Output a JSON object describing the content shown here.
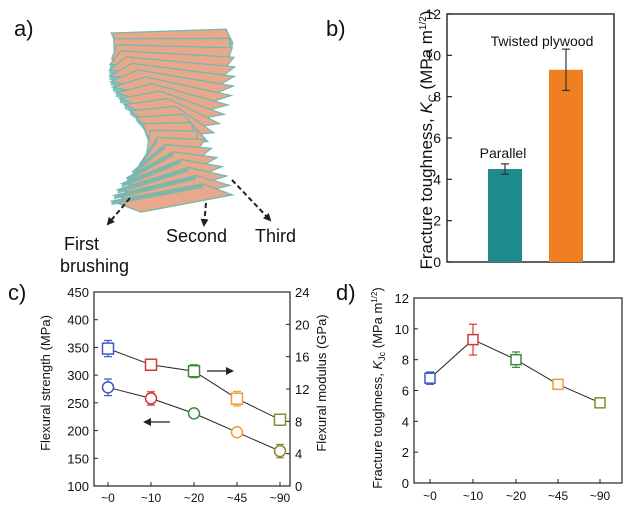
{
  "panels": {
    "a": {
      "label": "a)",
      "annotations": [
        "First",
        "brushing",
        "Second",
        "Third"
      ]
    },
    "b": {
      "label": "b)"
    },
    "c": {
      "label": "c)"
    },
    "d": {
      "label": "d)"
    }
  },
  "colors": {
    "teal": "#1e8a8c",
    "orange": "#f07f22",
    "blue": "#3b58c4",
    "red": "#d23a3a",
    "green": "#3c8a3c",
    "lightorange": "#f49a3a",
    "olive": "#8a8c2a",
    "fiber_pink": "#e8a88c",
    "fiber_teal": "#6fb8b0"
  },
  "chart_data": [
    {
      "id": "b",
      "type": "bar",
      "categories": [
        "Parallel",
        "Twisted plywood"
      ],
      "values": [
        4.5,
        9.3
      ],
      "errors": [
        0.25,
        1.0
      ],
      "bar_labels": [
        "Parallel",
        "Twisted plywood"
      ],
      "ylabel_main": "Fracture toughness, ",
      "ylabel_sym": "K",
      "ylabel_sub": "C",
      "ylabel_unit": " (MPa m",
      "ylabel_sup": "1/2",
      "ylabel_close": ")",
      "ylim": [
        0,
        12
      ],
      "yticks": [
        "0",
        "2",
        "4",
        "6",
        "8",
        "10",
        "12"
      ]
    },
    {
      "id": "c",
      "type": "line",
      "categories": [
        "~0",
        "~10",
        "~20",
        "~45",
        "~90"
      ],
      "series": [
        {
          "axis": "right",
          "values": [
            17.0,
            15.0,
            14.2,
            10.8,
            8.2
          ],
          "errors": [
            1.0,
            0.5,
            0.8,
            0.9,
            0.6
          ]
        },
        {
          "axis": "left",
          "values": [
            278,
            258,
            231,
            197,
            163
          ],
          "errors": [
            15,
            12,
            8,
            5,
            12
          ]
        }
      ],
      "point_colors": [
        "#3b58c4",
        "#d23a3a",
        "#3c8a3c",
        "#f49a3a",
        "#8a8c2a"
      ],
      "ylabel_left": "Flexural strength (MPa)",
      "ylabel_right": "Flexural modulus (GPa)",
      "ylim_left": [
        100,
        450
      ],
      "ylim_right": [
        0,
        24
      ],
      "yticks_left": [
        "100",
        "150",
        "200",
        "250",
        "300",
        "350",
        "400",
        "450"
      ],
      "yticks_right": [
        "0",
        "4",
        "8",
        "12",
        "16",
        "20",
        "24"
      ]
    },
    {
      "id": "d",
      "type": "line",
      "categories": [
        "~0",
        "~10",
        "~20",
        "~45",
        "~90"
      ],
      "values": [
        6.8,
        9.3,
        8.0,
        6.4,
        5.2
      ],
      "errors": [
        0.4,
        1.0,
        0.5,
        0.3,
        0.15
      ],
      "point_colors": [
        "#3b58c4",
        "#d23a3a",
        "#3c8a3c",
        "#f49a3a",
        "#8a8c2a"
      ],
      "ylabel_main": "Fracture toughness, ",
      "ylabel_sym": "K",
      "ylabel_sub": "Jc",
      "ylabel_unit": " (MPa m",
      "ylabel_sup": "1/2",
      "ylabel_close": ")",
      "ylim": [
        0,
        12
      ],
      "yticks": [
        "0",
        "2",
        "4",
        "6",
        "8",
        "10",
        "12"
      ]
    }
  ]
}
